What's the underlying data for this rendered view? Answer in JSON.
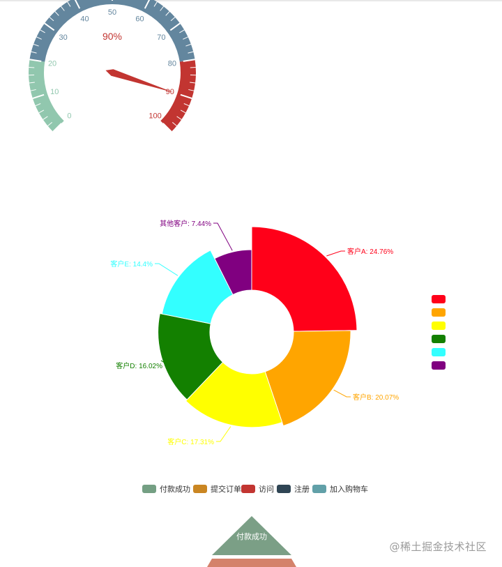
{
  "watermark": "@稀土掘金技术社区",
  "chart_data": [
    {
      "type": "gauge",
      "value": 90,
      "detail": "90%",
      "min": 0,
      "max": 100,
      "tick_labels": [
        "0",
        "10",
        "20",
        "30",
        "40",
        "50",
        "60",
        "70",
        "80",
        "90",
        "100"
      ],
      "color_bands": [
        {
          "to": 0.2,
          "color": "#91c7ae"
        },
        {
          "to": 0.8,
          "color": "#63869e"
        },
        {
          "to": 1.0,
          "color": "#c23531"
        }
      ]
    },
    {
      "type": "pie",
      "variant": "rose",
      "slices": [
        {
          "label": "客户A: 24.76%",
          "value": 24.76,
          "color": "#ff0019"
        },
        {
          "label": "客户B: 20.07%",
          "value": 20.07,
          "color": "#ffa500"
        },
        {
          "label": "客户C: 17.31%",
          "value": 17.31,
          "color": "#ffff00"
        },
        {
          "label": "客户D: 16.02%",
          "value": 16.02,
          "color": "#138000"
        },
        {
          "label": "客户E: 14.4%",
          "value": 14.4,
          "color": "#33ffff"
        },
        {
          "label": "其他客户: 7.44%",
          "value": 7.44,
          "color": "#800080"
        }
      ],
      "legend_placement": "right",
      "legend_colors": [
        "#ff0019",
        "#ffa500",
        "#ffff00",
        "#138000",
        "#33ffff",
        "#800080"
      ]
    },
    {
      "type": "funnel",
      "legend": [
        {
          "label": "付款成功",
          "color": "#749f83"
        },
        {
          "label": "提交订单",
          "color": "#ca8622"
        },
        {
          "label": "访问",
          "color": "#c23531"
        },
        {
          "label": "注册",
          "color": "#2f4554"
        },
        {
          "label": "加入购物车",
          "color": "#61a0a8"
        }
      ],
      "visible_segments": [
        {
          "label": "付款成功",
          "color": "#7b9f86"
        },
        {
          "label": "",
          "color": "#d4826b"
        }
      ]
    }
  ]
}
